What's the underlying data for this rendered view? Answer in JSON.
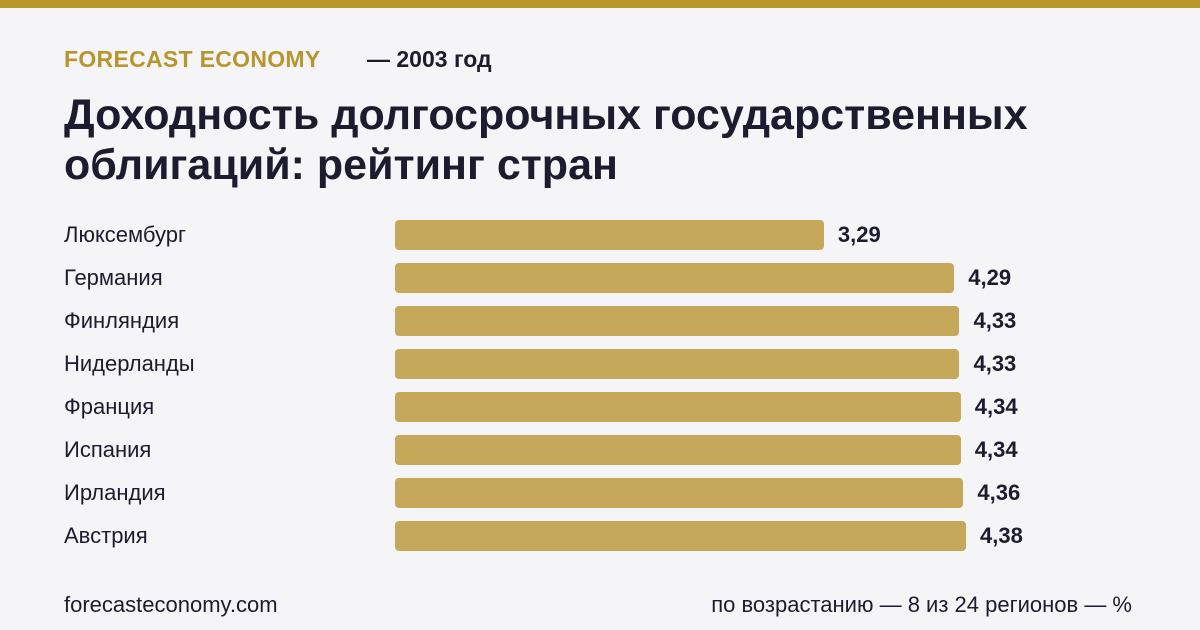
{
  "chart_data": {
    "type": "bar",
    "orientation": "horizontal",
    "brand": "FORECAST ECONOMY",
    "subtitle": "— 2003 год",
    "title": "Доходность долгосрочных государственных облигаций: рейтинг стран",
    "categories": [
      "Люксембург",
      "Германия",
      "Финляндия",
      "Нидерланды",
      "Франция",
      "Испания",
      "Ирландия",
      "Австрия"
    ],
    "values": [
      3.29,
      4.29,
      4.33,
      4.33,
      4.34,
      4.34,
      4.36,
      4.38
    ],
    "value_labels": [
      "3,29",
      "4,29",
      "4,33",
      "4,33",
      "4,34",
      "4,34",
      "4,36",
      "4,38"
    ],
    "color": "#c6a85a",
    "source": "forecasteconomy.com",
    "note": "по возрастанию — 8 из 24 регионов — %"
  }
}
